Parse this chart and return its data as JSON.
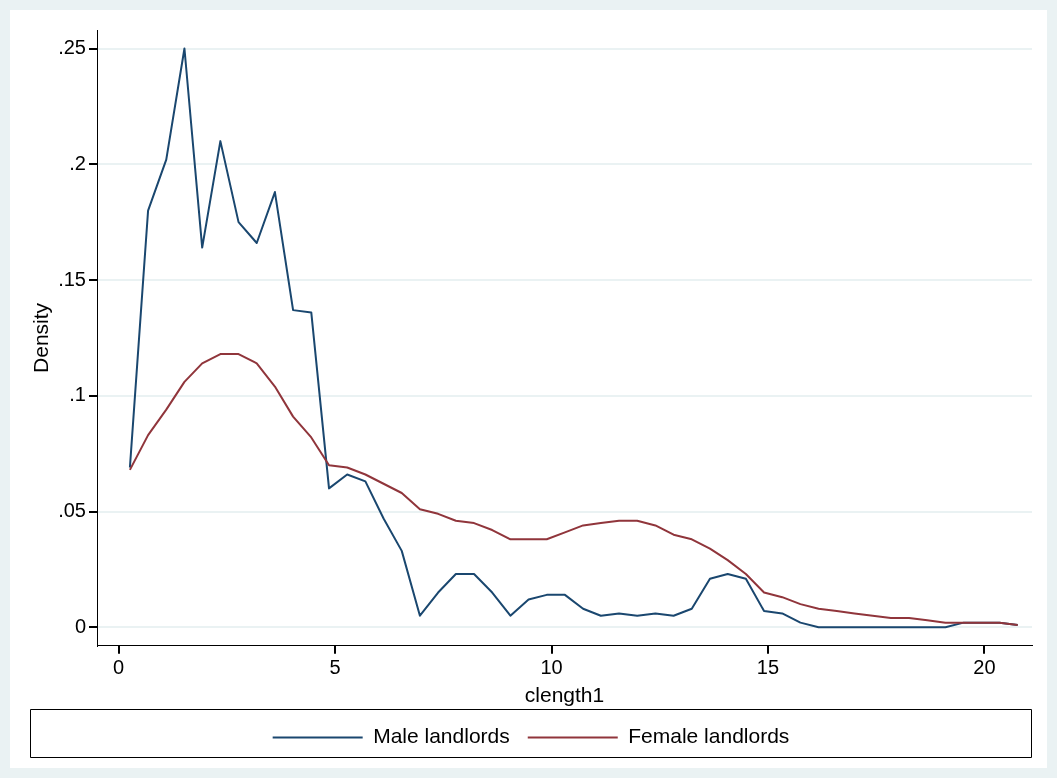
{
  "chart_data": {
    "type": "line",
    "xlabel": "clength1",
    "ylabel": "Density",
    "x": [
      0.26,
      0.68,
      1.1,
      1.52,
      1.93,
      2.35,
      2.77,
      3.19,
      3.61,
      4.03,
      4.45,
      4.86,
      5.28,
      5.7,
      6.12,
      6.54,
      6.96,
      7.38,
      7.79,
      8.21,
      8.63,
      9.05,
      9.47,
      9.89,
      10.31,
      10.73,
      11.14,
      11.56,
      11.98,
      12.4,
      12.82,
      13.24,
      13.66,
      14.07,
      14.49,
      14.91,
      15.33,
      15.75,
      16.17,
      16.59,
      17.0,
      17.42,
      17.84,
      18.26,
      18.68,
      19.1,
      19.52,
      19.93,
      20.35,
      20.77
    ],
    "series": [
      {
        "name": "Male landlords",
        "color": "#1a476f",
        "values": [
          0.069,
          0.18,
          0.202,
          0.25,
          0.164,
          0.21,
          0.175,
          0.166,
          0.188,
          0.137,
          0.136,
          0.06,
          0.066,
          0.063,
          0.047,
          0.033,
          0.005,
          0.015,
          0.023,
          0.023,
          0.015,
          0.005,
          0.012,
          0.014,
          0.014,
          0.008,
          0.005,
          0.006,
          0.005,
          0.006,
          0.005,
          0.008,
          0.021,
          0.023,
          0.021,
          0.007,
          0.006,
          0.002,
          0,
          0,
          0,
          0,
          0,
          0,
          0,
          0,
          0.002,
          0.002,
          0.002,
          0.001
        ]
      },
      {
        "name": "Female landlords",
        "color": "#90353b",
        "values": [
          0.068,
          0.083,
          0.094,
          0.106,
          0.114,
          0.118,
          0.118,
          0.114,
          0.104,
          0.091,
          0.082,
          0.07,
          0.069,
          0.066,
          0.062,
          0.058,
          0.051,
          0.049,
          0.046,
          0.045,
          0.042,
          0.038,
          0.038,
          0.038,
          0.041,
          0.044,
          0.045,
          0.046,
          0.046,
          0.044,
          0.04,
          0.038,
          0.034,
          0.029,
          0.023,
          0.015,
          0.013,
          0.01,
          0.008,
          0.007,
          0.006,
          0.005,
          0.004,
          0.004,
          0.003,
          0.002,
          0.002,
          0.002,
          0.002,
          0.001
        ]
      }
    ],
    "xlim": [
      -0.5,
      21.1
    ],
    "xticks": [
      0,
      5,
      10,
      15,
      20
    ],
    "ylim": [
      -0.008,
      0.258
    ],
    "yticks": [
      {
        "value": 0,
        "label": "0"
      },
      {
        "value": 0.05,
        "label": ".05"
      },
      {
        "value": 0.1,
        "label": ".1"
      },
      {
        "value": 0.15,
        "label": ".15"
      },
      {
        "value": 0.2,
        "label": ".2"
      },
      {
        "value": 0.25,
        "label": ".25"
      }
    ],
    "grid": "y",
    "legend": "bottom",
    "marker": "none",
    "line_style": "solid"
  }
}
